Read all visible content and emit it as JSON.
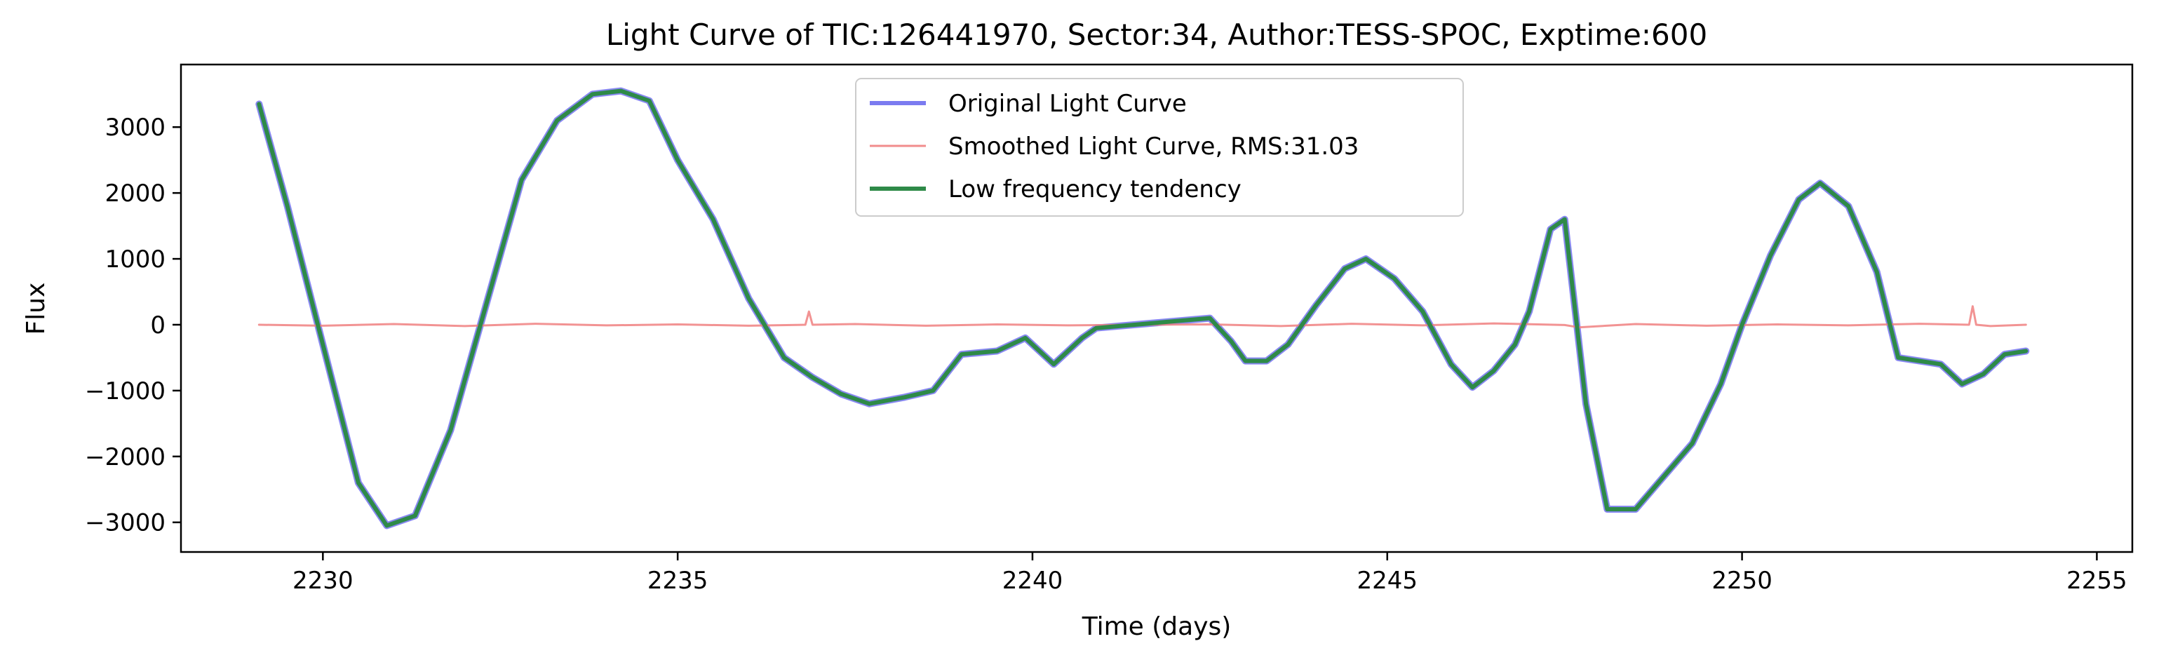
{
  "chart_data": {
    "type": "line",
    "title": "Light Curve of TIC:126441970, Sector:34, Author:TESS-SPOC, Exptime:600",
    "xlabel": "Time (days)",
    "ylabel": "Flux",
    "xlim": [
      2228.0,
      2255.5
    ],
    "ylim": [
      -3450,
      3950
    ],
    "xticks": [
      2230,
      2235,
      2240,
      2245,
      2250,
      2255
    ],
    "yticks": [
      -3000,
      -2000,
      -1000,
      0,
      1000,
      2000,
      3000
    ],
    "xtick_labels": [
      "2230",
      "2235",
      "2240",
      "2245",
      "2250",
      "2255"
    ],
    "ytick_labels": [
      "−3000",
      "−2000",
      "−1000",
      "0",
      "1000",
      "2000",
      "3000"
    ],
    "grid": false,
    "legend_position": "upper center",
    "legend": [
      {
        "label": "Original Light Curve",
        "color": "#7b7bf0"
      },
      {
        "label": "Smoothed Light Curve, RMS:31.03",
        "color": "#f08080"
      },
      {
        "label": "Low frequency tendency",
        "color": "#2e8a48"
      }
    ],
    "series": [
      {
        "name": "Original Light Curve",
        "color": "#7b7bf0",
        "x": [
          2229.1,
          2229.5,
          2230.0,
          2230.5,
          2230.9,
          2231.3,
          2231.8,
          2232.3,
          2232.8,
          2233.3,
          2233.8,
          2234.2,
          2234.6,
          2235.0,
          2235.5,
          2236.0,
          2236.5,
          2236.9,
          2237.3,
          2237.7,
          2238.2,
          2238.6,
          2239.0,
          2239.5,
          2239.9,
          2240.3,
          2240.7,
          2240.9,
          2242.5,
          2242.8,
          2243.0,
          2243.3,
          2243.6,
          2244.0,
          2244.4,
          2244.7,
          2245.1,
          2245.5,
          2245.9,
          2246.2,
          2246.5,
          2246.8,
          2247.0,
          2247.3,
          2247.5,
          2247.8,
          2248.1,
          2248.5,
          2248.9,
          2249.3,
          2249.7,
          2250.0,
          2250.4,
          2250.8,
          2251.1,
          2251.5,
          2251.9,
          2252.2,
          2252.5,
          2252.8,
          2253.1,
          2253.4,
          2253.7,
          2254.0
        ],
        "y": [
          3350,
          1800,
          -300,
          -2400,
          -3050,
          -2900,
          -1600,
          300,
          2200,
          3100,
          3500,
          3550,
          3400,
          2500,
          1600,
          400,
          -500,
          -800,
          -1050,
          -1200,
          -1100,
          -1000,
          -450,
          -400,
          -200,
          -600,
          -200,
          -50,
          100,
          -250,
          -550,
          -550,
          -300,
          300,
          850,
          1000,
          700,
          200,
          -600,
          -950,
          -700,
          -300,
          200,
          1450,
          1600,
          -1200,
          -2800,
          -2800,
          -2300,
          -1800,
          -900,
          0,
          1050,
          1900,
          2150,
          1800,
          800,
          -500,
          -550,
          -600,
          -900,
          -750,
          -450,
          -400
        ]
      },
      {
        "name": "Smoothed Light Curve, RMS:31.03",
        "color": "#f08080",
        "x": [
          2229.1,
          2230.0,
          2231.0,
          2232.0,
          2233.0,
          2234.0,
          2235.0,
          2236.0,
          2236.8,
          2236.85,
          2236.9,
          2237.5,
          2238.5,
          2239.5,
          2240.5,
          2241.5,
          2242.5,
          2243.5,
          2244.5,
          2245.5,
          2246.5,
          2247.5,
          2247.7,
          2248.5,
          2249.5,
          2250.5,
          2251.5,
          2252.5,
          2253.2,
          2253.25,
          2253.3,
          2253.5,
          2254.0
        ],
        "y": [
          0,
          -15,
          10,
          -20,
          15,
          -10,
          5,
          -15,
          0,
          200,
          0,
          10,
          -15,
          5,
          -10,
          0,
          5,
          -20,
          15,
          -10,
          20,
          -5,
          -40,
          10,
          -15,
          5,
          -10,
          15,
          0,
          280,
          0,
          -20,
          0
        ]
      },
      {
        "name": "Low frequency tendency",
        "color": "#2e8a48",
        "x": [
          2229.1,
          2229.5,
          2230.0,
          2230.5,
          2230.9,
          2231.3,
          2231.8,
          2232.3,
          2232.8,
          2233.3,
          2233.8,
          2234.2,
          2234.6,
          2235.0,
          2235.5,
          2236.0,
          2236.5,
          2236.9,
          2237.3,
          2237.7,
          2238.2,
          2238.6,
          2239.0,
          2239.5,
          2239.9,
          2240.3,
          2240.7,
          2240.9,
          2242.5,
          2242.8,
          2243.0,
          2243.3,
          2243.6,
          2244.0,
          2244.4,
          2244.7,
          2245.1,
          2245.5,
          2245.9,
          2246.2,
          2246.5,
          2246.8,
          2247.0,
          2247.3,
          2247.5,
          2247.8,
          2248.1,
          2248.5,
          2248.9,
          2249.3,
          2249.7,
          2250.0,
          2250.4,
          2250.8,
          2251.1,
          2251.5,
          2251.9,
          2252.2,
          2252.5,
          2252.8,
          2253.1,
          2253.4,
          2253.7,
          2254.0
        ],
        "y": [
          3350,
          1800,
          -300,
          -2400,
          -3050,
          -2900,
          -1600,
          300,
          2200,
          3100,
          3500,
          3550,
          3400,
          2500,
          1600,
          400,
          -500,
          -800,
          -1050,
          -1200,
          -1100,
          -1000,
          -450,
          -400,
          -200,
          -600,
          -200,
          -50,
          100,
          -250,
          -550,
          -550,
          -300,
          300,
          850,
          1000,
          700,
          200,
          -600,
          -950,
          -700,
          -300,
          200,
          1450,
          1600,
          -1200,
          -2800,
          -2800,
          -2300,
          -1800,
          -900,
          0,
          1050,
          1900,
          2150,
          1800,
          800,
          -500,
          -550,
          -600,
          -900,
          -750,
          -450,
          -400
        ]
      }
    ]
  }
}
